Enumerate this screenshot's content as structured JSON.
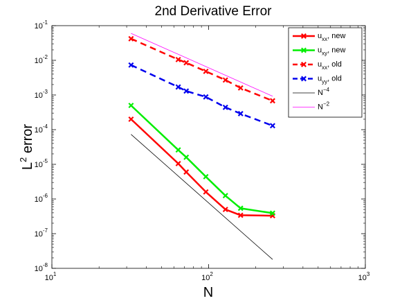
{
  "chart_data": {
    "type": "line",
    "title": "2nd Derivative Error",
    "xlabel": "N",
    "ylabel": "L",
    "ylabel_sup": "2",
    "ylabel_rest": " error",
    "xscale": "log",
    "yscale": "log",
    "xlim": [
      10,
      1000
    ],
    "ylim": [
      1e-08,
      0.1
    ],
    "x_ticks": [
      {
        "value": 10,
        "base": "10",
        "exp": "1"
      },
      {
        "value": 100,
        "base": "10",
        "exp": "2"
      },
      {
        "value": 1000,
        "base": "10",
        "exp": "3"
      }
    ],
    "y_ticks": [
      {
        "value": 1e-08,
        "base": "10",
        "exp": "-8"
      },
      {
        "value": 1e-07,
        "base": "10",
        "exp": "-7"
      },
      {
        "value": 1e-06,
        "base": "10",
        "exp": "-6"
      },
      {
        "value": 1e-05,
        "base": "10",
        "exp": "-5"
      },
      {
        "value": 0.0001,
        "base": "10",
        "exp": "-4"
      },
      {
        "value": 0.001,
        "base": "10",
        "exp": "-3"
      },
      {
        "value": 0.01,
        "base": "10",
        "exp": "-2"
      },
      {
        "value": 0.1,
        "base": "10",
        "exp": "-1"
      }
    ],
    "grid": false,
    "legend_position": "top-right",
    "series": [
      {
        "key": "uxx-new",
        "name_main": "u",
        "name_sub": "xx",
        "name_tail": ", new",
        "color": "#ff0000",
        "dash": "solid",
        "marker": "x",
        "width": 2.5,
        "x": [
          32,
          64,
          72,
          96,
          128,
          160,
          256
        ],
        "y": [
          0.0002,
          1.05e-05,
          6e-06,
          1.6e-06,
          5e-07,
          3.4e-07,
          3.3e-07
        ]
      },
      {
        "key": "uxy-new",
        "name_main": "u",
        "name_sub": "xy",
        "name_tail": ", new",
        "color": "#00ee00",
        "dash": "solid",
        "marker": "x",
        "width": 2.5,
        "x": [
          32,
          64,
          72,
          96,
          128,
          160,
          256
        ],
        "y": [
          0.0005,
          2.6e-05,
          1.6e-05,
          4.4e-06,
          1.25e-06,
          5.4e-07,
          3.9e-07
        ]
      },
      {
        "key": "uxx-old",
        "name_main": "u",
        "name_sub": "xx",
        "name_tail": ", old",
        "color": "#ff0000",
        "dash": "dashed",
        "marker": "x",
        "width": 2.5,
        "x": [
          32,
          64,
          72,
          96,
          128,
          160,
          256
        ],
        "y": [
          0.042,
          0.0105,
          0.0085,
          0.0048,
          0.0027,
          0.0016,
          0.00068
        ]
      },
      {
        "key": "uyy-old",
        "name_main": "u",
        "name_sub": "yy",
        "name_tail": ", old",
        "color": "#0000ee",
        "dash": "dashed",
        "marker": "x",
        "width": 2.5,
        "x": [
          32,
          64,
          72,
          96,
          128,
          160,
          256
        ],
        "y": [
          0.0073,
          0.0017,
          0.0013,
          0.00088,
          0.00044,
          0.00029,
          0.00013
        ]
      },
      {
        "key": "n-4",
        "name_main": "N",
        "name_sup": "−4",
        "name_tail": "",
        "color": "#000000",
        "dash": "solid",
        "marker": "none",
        "width": 0.8,
        "x": [
          32,
          256
        ],
        "y": [
          7.3e-05,
          1.8e-08
        ]
      },
      {
        "key": "n-2",
        "name_main": "N",
        "name_sup": "−2",
        "name_tail": "",
        "color": "#ff00ff",
        "dash": "solid",
        "marker": "none",
        "width": 0.8,
        "x": [
          32,
          256
        ],
        "y": [
          0.06,
          0.00092
        ]
      }
    ]
  }
}
